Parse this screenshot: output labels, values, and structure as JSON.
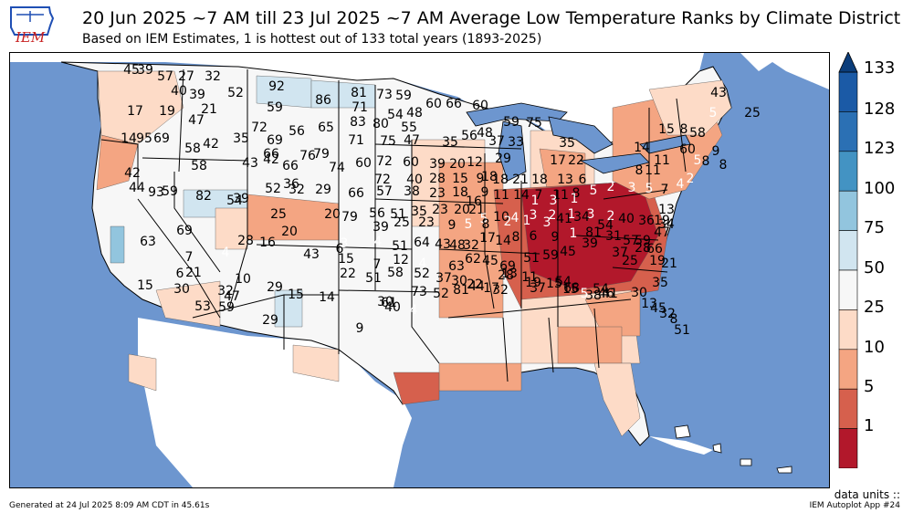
{
  "logo_text": "IEM",
  "title": "20 Jun 2025 ~7 AM till 23 Jul 2025 ~7 AM Average Low Temperature Ranks by Climate District",
  "subtitle": "Based on IEM Estimates, 1 is hottest out of 133 total years (1893-2025)",
  "colorbar": {
    "ticks": [
      "133",
      "128",
      "123",
      "100",
      "75",
      "50",
      "25",
      "10",
      "5",
      "1"
    ],
    "colors": [
      "#1b5aa6",
      "#2b70b4",
      "#4393c3",
      "#92c5de",
      "#d1e5f0",
      "#f7f7f7",
      "#fddbc7",
      "#f4a582",
      "#d6604d",
      "#b2182b"
    ]
  },
  "units_label": "data units ::",
  "footer_left": "Generated at 24 Jul 2025 8:09 AM CDT in 45.61s",
  "footer_right": "IEM Autoplot App #24",
  "map_colors": {
    "ocean": "#6d96cf",
    "land_outside": "#ffffff",
    "borders": "#000000"
  },
  "district_ranks": [
    {
      "r": "45"
    },
    {
      "r": "39"
    },
    {
      "r": "57"
    },
    {
      "r": "27"
    },
    {
      "r": "32"
    },
    {
      "r": "40"
    },
    {
      "r": "39"
    },
    {
      "r": "52"
    },
    {
      "r": "92"
    },
    {
      "r": "86"
    },
    {
      "r": "81"
    },
    {
      "r": "73"
    },
    {
      "r": "59"
    },
    {
      "r": "17"
    },
    {
      "r": "19"
    },
    {
      "r": "47"
    },
    {
      "r": "21"
    },
    {
      "r": "59"
    },
    {
      "r": "71"
    },
    {
      "r": "54"
    },
    {
      "r": "48"
    },
    {
      "r": "60"
    },
    {
      "r": "66"
    },
    {
      "r": "60"
    },
    {
      "r": "72"
    },
    {
      "r": "56"
    },
    {
      "r": "65"
    },
    {
      "r": "83"
    },
    {
      "r": "80"
    },
    {
      "r": "55"
    },
    {
      "r": "14"
    },
    {
      "r": "95"
    },
    {
      "r": "69"
    },
    {
      "r": "58"
    },
    {
      "r": "42"
    },
    {
      "r": "35"
    },
    {
      "r": "69"
    },
    {
      "r": "66"
    },
    {
      "r": "71"
    },
    {
      "r": "75"
    },
    {
      "r": "47"
    },
    {
      "r": "35"
    },
    {
      "r": "56"
    },
    {
      "r": "48"
    },
    {
      "r": "37"
    },
    {
      "r": "33"
    },
    {
      "r": "59"
    },
    {
      "r": "75"
    },
    {
      "r": "35"
    },
    {
      "r": "15"
    },
    {
      "r": "8"
    },
    {
      "r": "5"
    },
    {
      "r": "43"
    },
    {
      "r": "25"
    },
    {
      "r": "58"
    },
    {
      "r": "60"
    },
    {
      "r": "43"
    },
    {
      "r": "42"
    },
    {
      "r": "66"
    },
    {
      "r": "76"
    },
    {
      "r": "79"
    },
    {
      "r": "60"
    },
    {
      "r": "72"
    },
    {
      "r": "60"
    },
    {
      "r": "39"
    },
    {
      "r": "20"
    },
    {
      "r": "12"
    },
    {
      "r": "18"
    },
    {
      "r": "29"
    },
    {
      "r": "17"
    },
    {
      "r": "22"
    },
    {
      "r": "14"
    },
    {
      "r": "11"
    },
    {
      "r": "5"
    },
    {
      "r": "9"
    },
    {
      "r": "8"
    },
    {
      "r": "36"
    },
    {
      "r": "74"
    },
    {
      "r": "72"
    },
    {
      "r": "40"
    },
    {
      "r": "28"
    },
    {
      "r": "15"
    },
    {
      "r": "9"
    },
    {
      "r": "18"
    },
    {
      "r": "21"
    },
    {
      "r": "18"
    },
    {
      "r": "13"
    },
    {
      "r": "6"
    },
    {
      "r": "8"
    },
    {
      "r": "11"
    },
    {
      "r": "58"
    },
    {
      "r": "8"
    },
    {
      "r": "42"
    },
    {
      "r": "44"
    },
    {
      "r": "93"
    },
    {
      "r": "59"
    },
    {
      "r": "82"
    },
    {
      "r": "39"
    },
    {
      "r": "52"
    },
    {
      "r": "32"
    },
    {
      "r": "29"
    },
    {
      "r": "66"
    },
    {
      "r": "57"
    },
    {
      "r": "38"
    },
    {
      "r": "23"
    },
    {
      "r": "18"
    },
    {
      "r": "16"
    },
    {
      "r": "9"
    },
    {
      "r": "11"
    },
    {
      "r": "14"
    },
    {
      "r": "7"
    },
    {
      "r": "11"
    },
    {
      "r": "8"
    },
    {
      "r": "1"
    },
    {
      "r": "3"
    },
    {
      "r": "1"
    },
    {
      "r": "5"
    },
    {
      "r": "2"
    },
    {
      "r": "3"
    },
    {
      "r": "5"
    },
    {
      "r": "7"
    },
    {
      "r": "4"
    },
    {
      "r": "2"
    },
    {
      "r": "54"
    },
    {
      "r": "25"
    },
    {
      "r": "20"
    },
    {
      "r": "79"
    },
    {
      "r": "56"
    },
    {
      "r": "51"
    },
    {
      "r": "35"
    },
    {
      "r": "23"
    },
    {
      "r": "20"
    },
    {
      "r": "21"
    },
    {
      "r": "5"
    },
    {
      "r": "10"
    },
    {
      "r": "4"
    },
    {
      "r": "3"
    },
    {
      "r": "2"
    },
    {
      "r": "1"
    },
    {
      "r": "3"
    },
    {
      "r": "2"
    },
    {
      "r": "63"
    },
    {
      "r": "69"
    },
    {
      "r": "28"
    },
    {
      "r": "16"
    },
    {
      "r": "20"
    },
    {
      "r": "43"
    },
    {
      "r": "39"
    },
    {
      "r": "25"
    },
    {
      "r": "23"
    },
    {
      "r": "9"
    },
    {
      "r": "5"
    },
    {
      "r": "8"
    },
    {
      "r": "2"
    },
    {
      "r": "1"
    },
    {
      "r": "3"
    },
    {
      "r": "41"
    },
    {
      "r": "34"
    },
    {
      "r": "54"
    },
    {
      "r": "40"
    },
    {
      "r": "36"
    },
    {
      "r": "19"
    },
    {
      "r": "13"
    },
    {
      "r": "7"
    },
    {
      "r": "4"
    },
    {
      "r": "6"
    },
    {
      "r": "3"
    },
    {
      "r": "4"
    },
    {
      "r": "51"
    },
    {
      "r": "64"
    },
    {
      "r": "43"
    },
    {
      "r": "48"
    },
    {
      "r": "32"
    },
    {
      "r": "17"
    },
    {
      "r": "14"
    },
    {
      "r": "8"
    },
    {
      "r": "6"
    },
    {
      "r": "9"
    },
    {
      "r": "1"
    },
    {
      "r": "81"
    },
    {
      "r": "31"
    },
    {
      "r": "57"
    },
    {
      "r": "59"
    },
    {
      "r": "66"
    },
    {
      "r": "47"
    },
    {
      "r": "34"
    },
    {
      "r": "21"
    },
    {
      "r": "10"
    },
    {
      "r": "15"
    },
    {
      "r": "7"
    },
    {
      "r": "12"
    },
    {
      "r": "4"
    },
    {
      "r": "63"
    },
    {
      "r": "62"
    },
    {
      "r": "45"
    },
    {
      "r": "69"
    },
    {
      "r": "51"
    },
    {
      "r": "59"
    },
    {
      "r": "45"
    },
    {
      "r": "39"
    },
    {
      "r": "37"
    },
    {
      "r": "25"
    },
    {
      "r": "28"
    },
    {
      "r": "19"
    },
    {
      "r": "21"
    },
    {
      "r": "15"
    },
    {
      "r": "6"
    },
    {
      "r": "47"
    },
    {
      "r": "29"
    },
    {
      "r": "22"
    },
    {
      "r": "51"
    },
    {
      "r": "58"
    },
    {
      "r": "52"
    },
    {
      "r": "37"
    },
    {
      "r": "30"
    },
    {
      "r": "22"
    },
    {
      "r": "17"
    },
    {
      "r": "13"
    },
    {
      "r": "11"
    },
    {
      "r": "37"
    },
    {
      "r": "54"
    },
    {
      "r": "68"
    },
    {
      "r": "54"
    },
    {
      "r": "46"
    },
    {
      "r": "41"
    },
    {
      "r": "45"
    },
    {
      "r": "30"
    },
    {
      "r": "32"
    },
    {
      "r": "29"
    },
    {
      "r": "15"
    },
    {
      "r": "14"
    },
    {
      "r": "30"
    },
    {
      "r": "61"
    },
    {
      "r": "73"
    },
    {
      "r": "52"
    },
    {
      "r": "81"
    },
    {
      "r": "44"
    },
    {
      "r": "32"
    },
    {
      "r": "28"
    },
    {
      "r": "19"
    },
    {
      "r": "15"
    },
    {
      "r": "15"
    },
    {
      "r": "5"
    },
    {
      "r": "38"
    },
    {
      "r": "30"
    },
    {
      "r": "13"
    },
    {
      "r": "35"
    },
    {
      "r": "32"
    },
    {
      "r": "8"
    },
    {
      "r": "51"
    },
    {
      "r": "53"
    },
    {
      "r": "59"
    },
    {
      "r": "9"
    },
    {
      "r": "40"
    },
    {
      "r": "4"
    }
  ]
}
